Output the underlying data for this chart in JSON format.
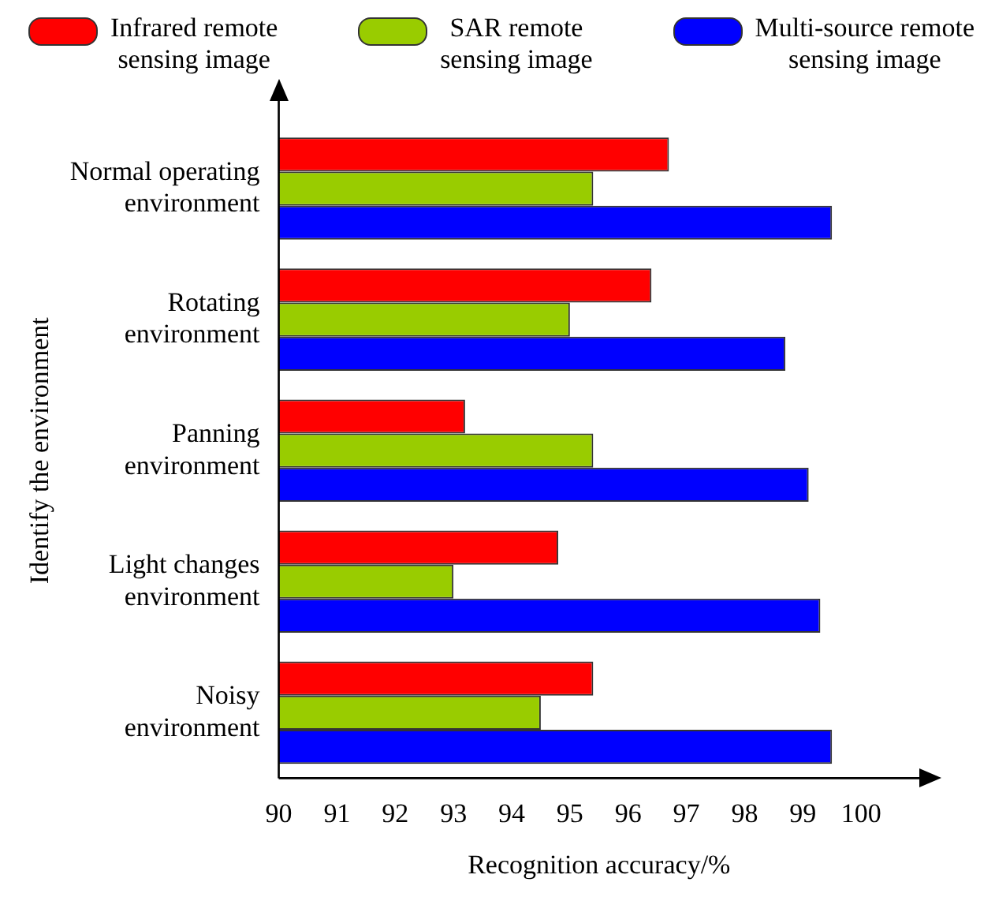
{
  "chart_data": {
    "type": "bar",
    "orientation": "horizontal",
    "xlabel": "Recognition accuracy/%",
    "ylabel": "Identify the environment",
    "categories": [
      "Normal operating environment",
      "Rotating environment",
      "Panning environment",
      "Light changes environment",
      "Noisy environment"
    ],
    "series": [
      {
        "name": "Infrared remote sensing image",
        "color": "#ff0000",
        "values": [
          96.7,
          96.4,
          93.2,
          94.8,
          95.4
        ]
      },
      {
        "name": "SAR remote sensing image",
        "color": "#99cc00",
        "values": [
          95.4,
          95.0,
          95.4,
          93.0,
          94.5
        ]
      },
      {
        "name": "Multi-source remote sensing image",
        "color": "#0000ff",
        "values": [
          99.5,
          98.7,
          99.1,
          99.3,
          99.5
        ]
      }
    ],
    "xlim": [
      90,
      101
    ],
    "xticks": [
      90,
      91,
      92,
      93,
      94,
      95,
      96,
      97,
      98,
      99,
      100
    ],
    "grid": false,
    "legend": "top"
  }
}
